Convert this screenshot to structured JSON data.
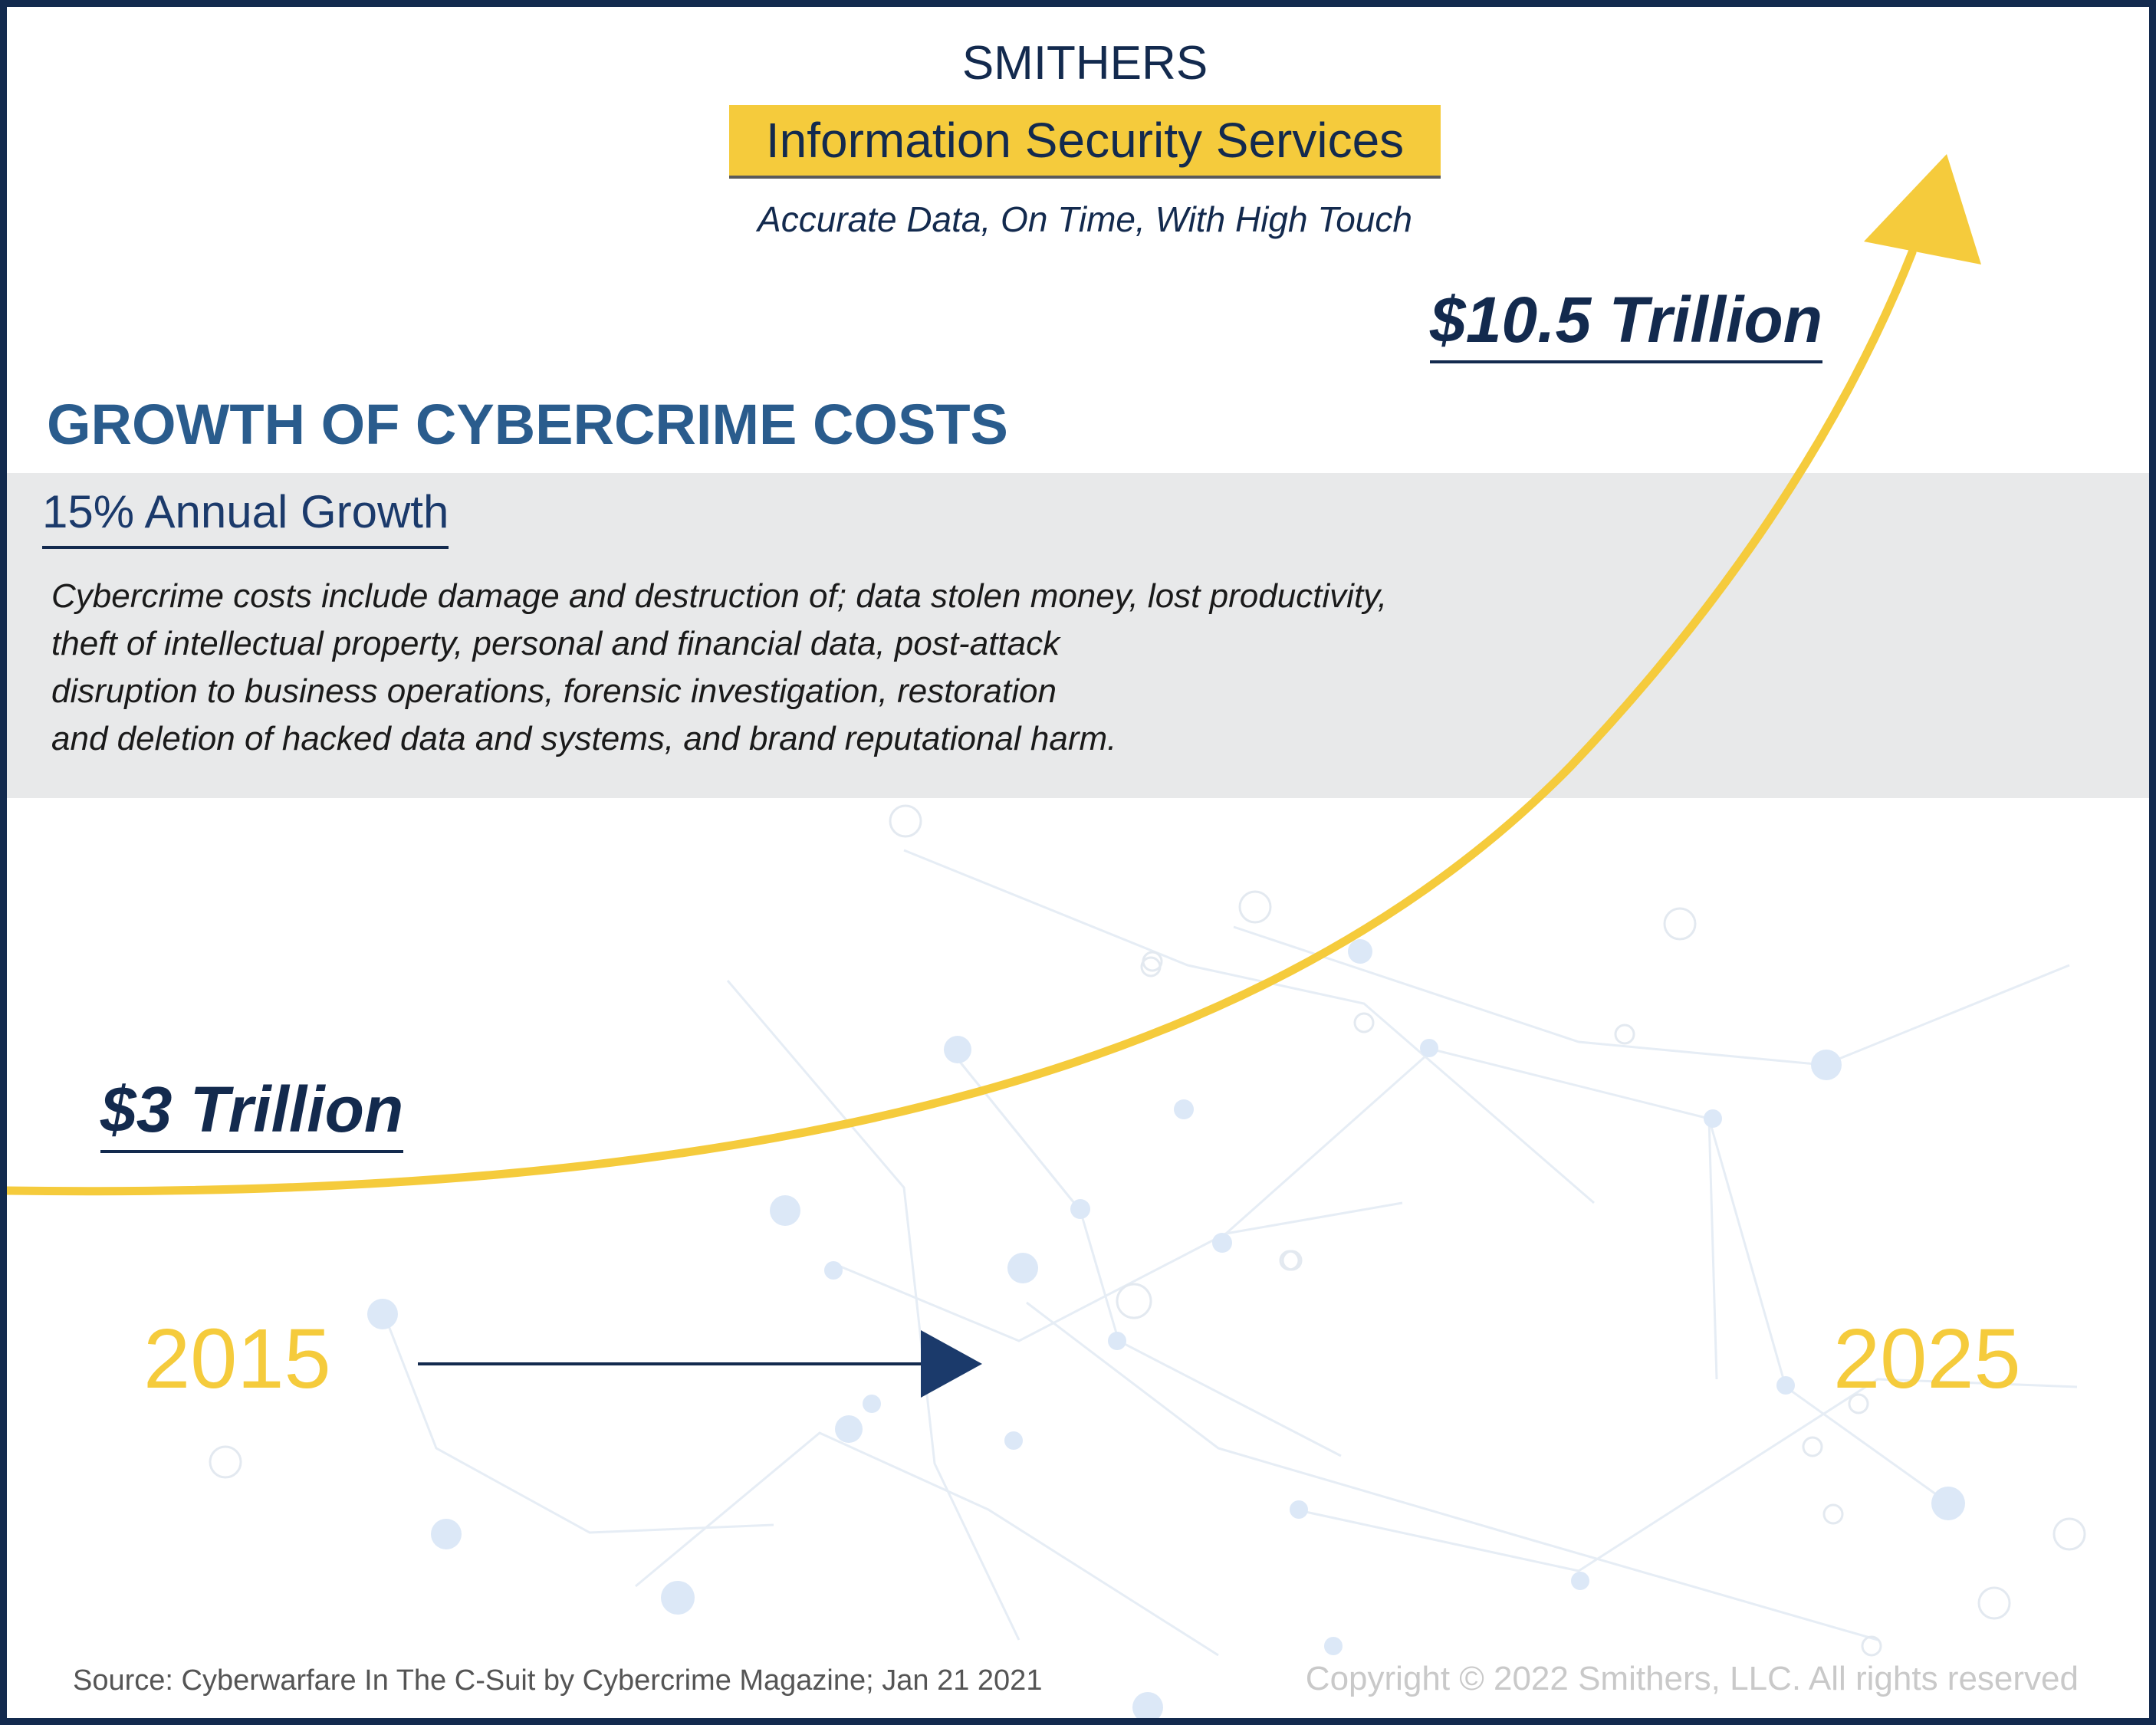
{
  "header": {
    "brand": "SMITHERS",
    "service": "Information Security Services",
    "tagline": "Accurate Data, On Time, With High Touch"
  },
  "main": {
    "title": "GROWTH OF CYBERCRIME COSTS",
    "growth_label": "15% Annual Growth",
    "description_lines": [
      "Cybercrime costs include damage and destruction of; data stolen money, lost productivity,",
      "theft of intellectual property, personal and financial data, post-attack",
      "disruption to business operations, forensic investigation, restoration",
      "and deletion of hacked data and systems, and brand reputational harm."
    ],
    "start_amount": "$3 Trillion",
    "end_amount": "$10.5 Trillion",
    "start_year": "2015",
    "end_year": "2025"
  },
  "footer": {
    "source": "Source: Cyberwarfare In The C-Suit by Cybercrime Magazine; Jan 21 2021",
    "copyright": "Copyright © 2022 Smithers, LLC. All rights reserved"
  },
  "colors": {
    "navy": "#132a4e",
    "accent_yellow": "#f5cb3c",
    "title_blue": "#2a5c8d",
    "panel_gray": "#e8e9ea"
  },
  "icons": [
    "growth-arrow-icon",
    "timeline-arrow-icon"
  ]
}
